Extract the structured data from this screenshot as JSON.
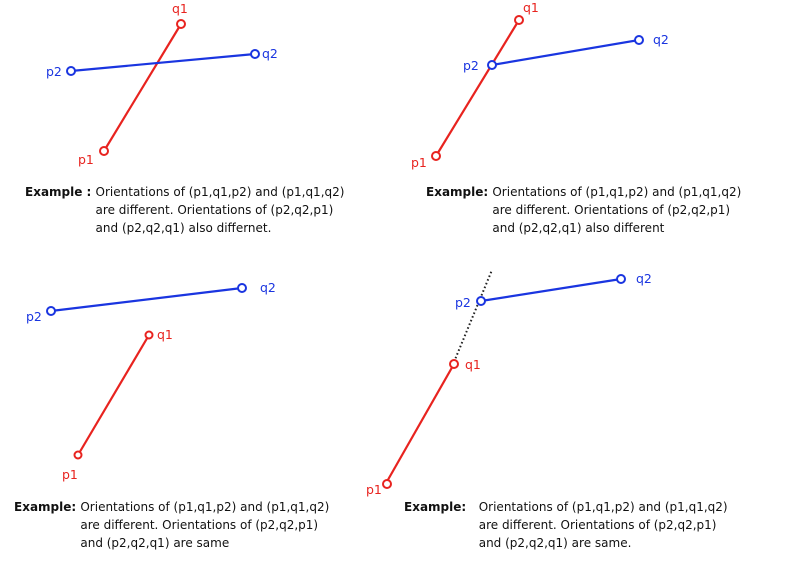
{
  "colors": {
    "segment1": "#e8231f",
    "segment2": "#1a35e0",
    "extension": "#222222"
  },
  "point_labels": {
    "p1": "p1",
    "q1": "q1",
    "p2": "p2",
    "q2": "q2"
  },
  "panels": [
    {
      "title": "Example : ",
      "lines": [
        "Orientations of (p1,q1,p2) and (p1,q1,q2)",
        "are different. Orientations of (p2,q2,p1)",
        "and (p2,q2,q1) also differnet."
      ]
    },
    {
      "title": "Example: ",
      "lines": [
        "Orientations of (p1,q1,p2) and (p1,q1,q2)",
        "are different. Orientations of (p2,q2,p1)",
        "and (p2,q2,q1) also different"
      ]
    },
    {
      "title": "Example: ",
      "lines": [
        "Orientations of (p1,q1,p2) and (p1,q1,q2)",
        "are different. Orientations of (p2,q2,p1)",
        "and (p2,q2,q1) are same"
      ]
    },
    {
      "title": "Example:   ",
      "lines": [
        "Orientations of (p1,q1,p2) and (p1,q1,q2)",
        "are different. Orientations of (p2,q2,p1)",
        "and (p2,q2,q1) are same."
      ]
    }
  ]
}
